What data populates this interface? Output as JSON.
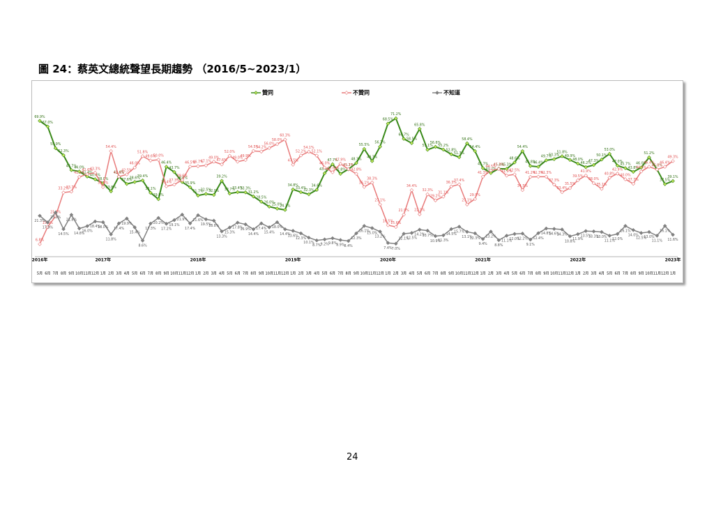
{
  "title": "圖 24：蔡英文總統聲望長期趨勢 （2016/5~2023/1）",
  "page_number": "24",
  "chart_data": {
    "type": "line",
    "ylim": [
      0,
      75
    ],
    "categories": [
      "5月",
      "6月",
      "7月",
      "8月",
      "9月",
      "10月",
      "11月",
      "12月",
      "1月",
      "2月",
      "3月",
      "4月",
      "5月",
      "6月",
      "7月",
      "8月",
      "9月",
      "10月",
      "11月",
      "12月",
      "1月",
      "2月",
      "3月",
      "4月",
      "5月",
      "6月",
      "7月",
      "8月",
      "9月",
      "10月",
      "11月",
      "12月",
      "1月",
      "2月",
      "3月",
      "4月",
      "5月",
      "6月",
      "7月",
      "8月",
      "9月",
      "10月",
      "11月",
      "12月",
      "1月",
      "2月",
      "3月",
      "4月",
      "5月",
      "6月",
      "7月",
      "8月",
      "9月",
      "10月",
      "11月",
      "12月",
      "1月",
      "2月",
      "3月",
      "4月",
      "5月",
      "6月",
      "7月",
      "8月",
      "9月",
      "10月",
      "11月",
      "12月",
      "1月",
      "2月",
      "3月",
      "4月",
      "5月",
      "6月",
      "7月",
      "8月",
      "9月",
      "10月",
      "11月",
      "12月",
      "1月"
    ],
    "years": [
      "2016年",
      null,
      null,
      null,
      null,
      null,
      null,
      null,
      "2017年",
      null,
      null,
      null,
      null,
      null,
      null,
      null,
      null,
      null,
      null,
      null,
      "2018年",
      null,
      null,
      null,
      null,
      null,
      null,
      null,
      null,
      null,
      null,
      null,
      "2019年",
      null,
      null,
      null,
      null,
      null,
      null,
      null,
      null,
      null,
      null,
      null,
      "2020年",
      null,
      null,
      null,
      null,
      null,
      null,
      null,
      null,
      null,
      null,
      null,
      "2021年",
      null,
      null,
      null,
      null,
      null,
      null,
      null,
      null,
      null,
      null,
      null,
      "2022年",
      null,
      null,
      null,
      null,
      null,
      null,
      null,
      null,
      null,
      null,
      null,
      "2023年"
    ],
    "series": [
      {
        "name": "贊同",
        "color": "#3a8a1a",
        "marker": "#c4e55a",
        "label_color": "#2f6f12",
        "values": [
          69.9,
          67.0,
          55.9,
          52.3,
          44.7,
          44.0,
          41.4,
          40.0,
          38.0,
          33.8,
          41.4,
          37.6,
          38.6,
          39.4,
          33.1,
          29.8,
          46.4,
          43.7,
          38.6,
          35.9,
          31.7,
          32.5,
          32.0,
          39.2,
          32.7,
          33.4,
          33.3,
          31.2,
          28.5,
          26.0,
          25.0,
          24.3,
          34.8,
          33.4,
          32.3,
          34.6,
          43.1,
          47.7,
          42.8,
          45.1,
          48.3,
          55.5,
          49.3,
          56.7,
          68.5,
          71.2,
          60.7,
          58.5,
          65.8,
          55.1,
          56.6,
          55.2,
          52.8,
          51.3,
          58.4,
          54.4,
          45.7,
          43.2,
          45.4,
          45.3,
          48.6,
          54.4,
          46.8,
          46.4,
          49.7,
          50.3,
          51.8,
          49.9,
          48.0,
          46.2,
          47.3,
          50.1,
          53.0,
          47.0,
          45.7,
          43.8,
          46.0,
          51.2,
          45.0,
          37.5,
          39.1
        ],
        "value_labels": [
          "69.9%",
          "67.0%",
          "55.9%",
          "52.3%",
          "44.7%",
          "44.0%",
          "41.4%",
          "40.0%",
          "38.0%",
          "33.8%",
          "41.4%",
          "37.6%",
          "38.6%",
          "39.4%",
          "33.1%",
          "29.8%",
          "46.4%",
          "43.7%",
          "38.6%",
          "35.9%",
          "31.7%",
          "32.5%",
          "32.0%",
          "39.2%",
          "32.7%",
          "33.4%",
          "33.3%",
          "31.2%",
          "28.5%",
          "26.0%",
          "25.0%",
          "24.3%",
          "34.8%",
          "33.4%",
          "32.3%",
          "34.6%",
          "43.1%",
          "47.7%",
          "42.8%",
          "45.1%",
          "48.3%",
          "55.5%",
          "49.3%",
          "56.7%",
          "68.5%",
          "71.2%",
          "60.7%",
          "58.5%",
          "65.8%",
          "55.1%",
          "56.6%",
          "55.2%",
          "52.8%",
          "51.3%",
          "58.4%",
          "54.4%",
          "45.7%",
          "43.2%",
          "45.4%",
          "45.3%",
          "48.6%",
          "54.4%",
          "46.8%",
          "46.4%",
          "49.7%",
          "50.3%",
          "51.8%",
          "49.9%",
          "48.0%",
          "46.2%",
          "47.3%",
          "50.1%",
          "53.0%",
          "47.0%",
          "45.7%",
          "43.8%",
          "46.0%",
          "51.2%",
          "45.0%",
          "37.5%",
          "39.1%"
        ]
      },
      {
        "name": "不贊同",
        "color": "#e87a7a",
        "marker": "#ffffff",
        "label_color": "#e05050",
        "values": [
          6.8,
          15.6,
          21.1,
          33.2,
          33.7,
          41.2,
          42.6,
          43.3,
          36.0,
          54.4,
          41.3,
          42.5,
          46.0,
          51.8,
          49.6,
          50.0,
          36.4,
          37.3,
          39.6,
          46.5,
          46.7,
          47.1,
          49.0,
          47.6,
          52.0,
          49.0,
          49.9,
          54.5,
          54.2,
          56.0,
          58.0,
          60.3,
          47.5,
          52.2,
          54.1,
          52.1,
          46.0,
          43.6,
          47.9,
          45.2,
          42.8,
          36.1,
          38.3,
          27.1,
          16.5,
          15.6,
          21.9,
          34.4,
          22.1,
          32.3,
          29.2,
          31.1,
          36.3,
          37.4,
          27.1,
          29.9,
          41.3,
          44.5,
          45.3,
          41.9,
          42.5,
          34.5,
          41.2,
          41.3,
          41.3,
          37.3,
          33.4,
          35.5,
          39.5,
          41.9,
          38.0,
          35.1,
          40.8,
          42.9,
          40.0,
          37.7,
          44.0,
          46.4,
          45.0,
          46.4,
          49.3
        ],
        "value_labels": [
          "6.8%",
          "15.6%",
          "21.1%",
          "33.2%",
          "33.7%",
          "41.2%",
          "42.6%",
          "43.3%",
          "36.0%",
          "54.4%",
          "41.3%",
          "42.5%",
          "46.0%",
          "51.8%",
          "49.6%",
          "50.0%",
          "36.4%",
          "37.3%",
          "39.6%",
          "46.5%",
          "46.7%",
          "47.1%",
          "49.0%",
          "47.6%",
          "52.0%",
          "49.0%",
          "49.9%",
          "54.5%",
          "54.2%",
          "56.0%",
          "58.0%",
          "60.3%",
          "47.5%",
          "52.2%",
          "54.1%",
          "52.1%",
          "46.0%",
          "43.6%",
          "47.9%",
          "45.2%",
          "42.8%",
          "36.1%",
          "38.3%",
          "27.1%",
          "16.5%",
          "15.6%",
          "21.9%",
          "34.4%",
          "22.1%",
          "32.3%",
          "29.2%",
          "31.1%",
          "36.3%",
          "37.4%",
          "27.1%",
          "29.9%",
          "41.3%",
          "44.5%",
          "45.3%",
          "41.9%",
          "42.5%",
          "34.5%",
          "41.2%",
          "41.3%",
          "41.3%",
          "37.3%",
          "33.4%",
          "35.5%",
          "39.5%",
          "41.9%",
          "38.0%",
          "35.1%",
          "40.8%",
          "42.9%",
          "40.0%",
          "37.7%",
          "44.0%",
          "46.4%",
          "45.0%",
          "46.4%",
          "49.3%"
        ]
      },
      {
        "name": "不知道",
        "color": "#808080",
        "marker": "#808080",
        "label_color": "#555555",
        "values": [
          21.3,
          17.9,
          23.0,
          14.5,
          21.8,
          14.8,
          16.0,
          18.4,
          18.0,
          11.8,
          17.4,
          19.9,
          15.4,
          8.6,
          17.3,
          20.2,
          17.2,
          19.1,
          21.9,
          17.4,
          21.6,
          19.5,
          18.8,
          13.3,
          15.3,
          17.8,
          16.9,
          14.4,
          17.4,
          15.4,
          18.0,
          14.4,
          13.6,
          12.3,
          10.1,
          8.7,
          9.2,
          9.8,
          8.9,
          8.4,
          12.3,
          16.1,
          15.0,
          13.2,
          7.4,
          7.0,
          12.1,
          12.5,
          14.2,
          13.7,
          10.9,
          11.3,
          14.5,
          15.7,
          13.1,
          12.3,
          9.4,
          13.2,
          8.8,
          11.1,
          12.0,
          12.2,
          9.1,
          12.4,
          14.8,
          14.6,
          14.3,
          10.8,
          11.9,
          13.5,
          13.3,
          13.0,
          11.1,
          12.0,
          16.1,
          14.0,
          12.5,
          13.0,
          11.1,
          16.1,
          11.6
        ],
        "value_labels": [
          "21.3%",
          "17.9%",
          "23.0%",
          "14.5%",
          "21.8%",
          "14.8%",
          "16.0%",
          "18.4%",
          "18.0%",
          "11.8%",
          "17.4%",
          "19.9%",
          "15.4%",
          "8.6%",
          "17.3%",
          "20.2%",
          "17.2%",
          "19.1%",
          "21.9%",
          "17.4%",
          "21.6%",
          "19.5%",
          "18.8%",
          "13.3%",
          "15.3%",
          "17.8%",
          "16.9%",
          "14.4%",
          "17.4%",
          "15.4%",
          "18.0%",
          "14.4%",
          "13.6%",
          "12.3%",
          "10.1%",
          "8.7%",
          "9.2%",
          "9.8%",
          "8.9%",
          "8.4%",
          "12.3%",
          "16.1%",
          "15.0%",
          "13.2%",
          "7.4%",
          "7.0%",
          "12.1%",
          "12.5%",
          "14.2%",
          "13.7%",
          "10.9%",
          "11.3%",
          "14.5%",
          "15.7%",
          "13.1%",
          "12.3%",
          "9.4%",
          "13.2%",
          "8.8%",
          "11.1%",
          "12.0%",
          "12.2%",
          "9.1%",
          "12.4%",
          "14.8%",
          "14.6%",
          "14.3%",
          "10.8%",
          "11.9%",
          "13.5%",
          "13.3%",
          "13.0%",
          "11.1%",
          "12.0%",
          "16.1%",
          "14.0%",
          "12.5%",
          "13.0%",
          "11.1%",
          "16.1%",
          "11.6%"
        ]
      }
    ]
  }
}
